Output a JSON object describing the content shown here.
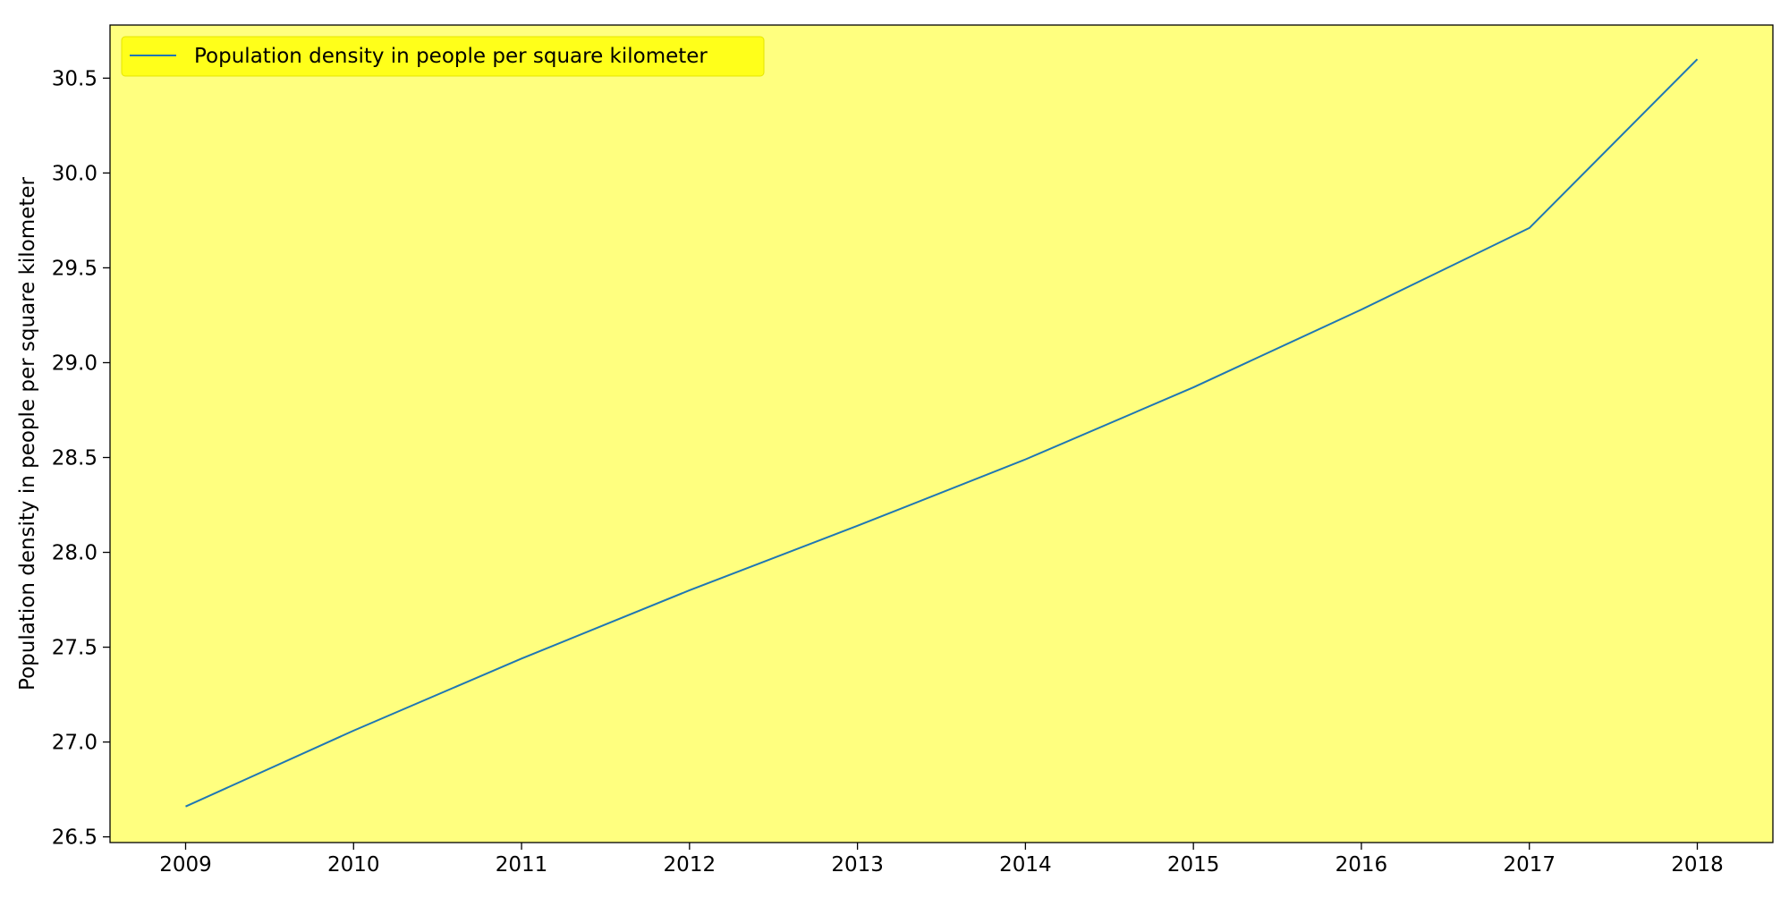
{
  "chart_data": {
    "type": "line",
    "title": "",
    "xlabel": "",
    "ylabel": "Population density in people per square kilometer",
    "x": [
      2009,
      2010,
      2011,
      2012,
      2013,
      2014,
      2015,
      2016,
      2017,
      2018
    ],
    "series": [
      {
        "name": "Population density in people per square kilometer",
        "values": [
          26.66,
          27.06,
          27.44,
          27.8,
          28.14,
          28.49,
          28.87,
          29.28,
          29.71,
          30.6
        ],
        "color": "#1f77b4"
      }
    ],
    "x_ticks": [
      "2009",
      "2010",
      "2011",
      "2012",
      "2013",
      "2014",
      "2015",
      "2016",
      "2017",
      "2018"
    ],
    "y_ticks": [
      "26.5",
      "27.0",
      "27.5",
      "28.0",
      "28.5",
      "29.0",
      "29.5",
      "30.0",
      "30.5"
    ],
    "xlim": [
      2008.55,
      2018.45
    ],
    "ylim": [
      26.47,
      30.78
    ],
    "plot_background": "#ffff7f",
    "legend": {
      "position": "top-left",
      "background": "#ffff1a"
    },
    "grid": false
  }
}
